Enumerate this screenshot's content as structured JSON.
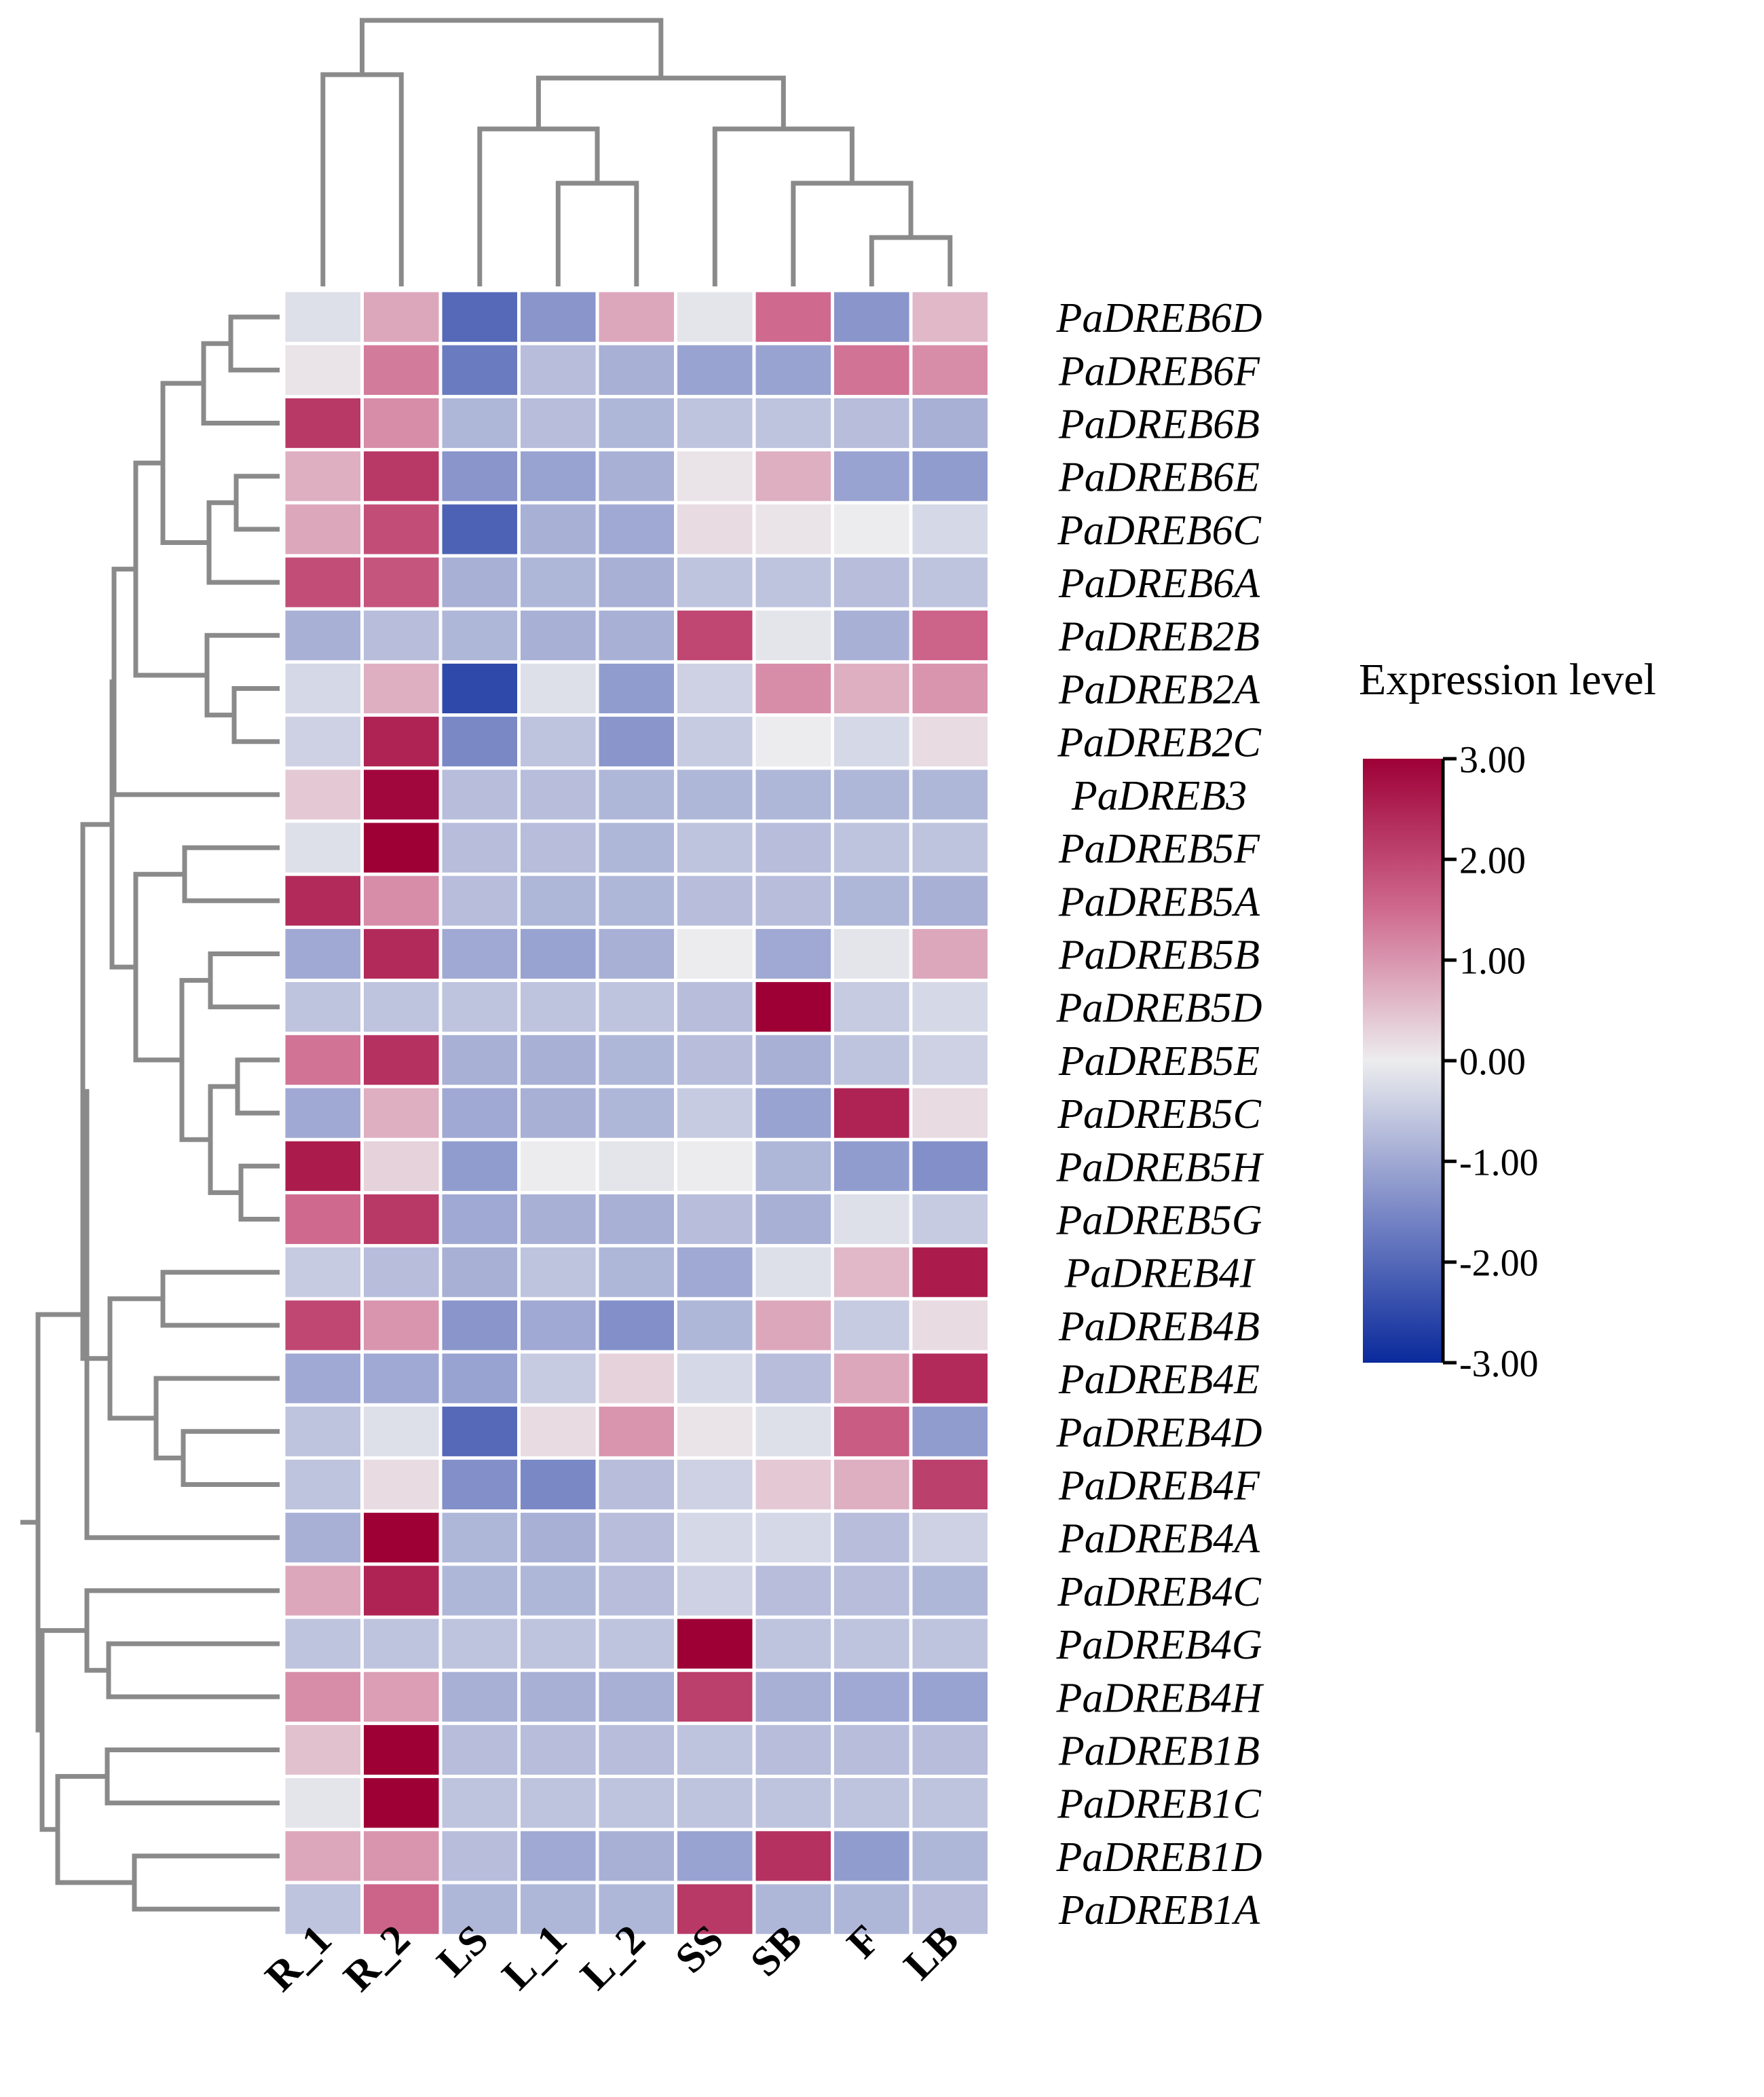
{
  "chart_data": {
    "type": "heatmap",
    "title": "",
    "columns": [
      "R_1",
      "R_2",
      "LS",
      "L_1",
      "L_2",
      "SS",
      "SB",
      "F",
      "LB"
    ],
    "rows": [
      "PaDREB6D",
      "PaDREB6F",
      "PaDREB6B",
      "PaDREB6E",
      "PaDREB6C",
      "PaDREB6A",
      "PaDREB2B",
      "PaDREB2A",
      "PaDREB2C",
      "PaDREB3",
      "PaDREB5F",
      "PaDREB5A",
      "PaDREB5B",
      "PaDREB5D",
      "PaDREB5E",
      "PaDREB5C",
      "PaDREB5H",
      "PaDREB5G",
      "PaDREB4I",
      "PaDREB4B",
      "PaDREB4E",
      "PaDREB4D",
      "PaDREB4F",
      "PaDREB4A",
      "PaDREB4C",
      "PaDREB4G",
      "PaDREB4H",
      "PaDREB1B",
      "PaDREB1C",
      "PaDREB1D",
      "PaDREB1A"
    ],
    "values": [
      [
        -0.2,
        0.8,
        -2.0,
        -1.3,
        0.8,
        -0.1,
        1.5,
        -1.3,
        0.6
      ],
      [
        0.1,
        1.3,
        -1.7,
        -0.7,
        -0.9,
        -1.1,
        -1.1,
        1.4,
        1.1
      ],
      [
        2.2,
        1.1,
        -0.8,
        -0.7,
        -0.8,
        -0.6,
        -0.6,
        -0.7,
        -0.9
      ],
      [
        0.7,
        2.2,
        -1.3,
        -1.1,
        -0.9,
        0.1,
        0.7,
        -1.1,
        -1.2
      ],
      [
        0.8,
        1.9,
        -2.1,
        -0.9,
        -1.0,
        0.2,
        0.1,
        0.0,
        -0.3
      ],
      [
        1.9,
        1.8,
        -0.9,
        -0.8,
        -0.9,
        -0.6,
        -0.6,
        -0.7,
        -0.6
      ],
      [
        -0.9,
        -0.7,
        -0.8,
        -0.9,
        -0.9,
        2.0,
        -0.1,
        -0.9,
        1.6
      ],
      [
        -0.3,
        0.7,
        -2.5,
        -0.2,
        -1.2,
        -0.4,
        1.1,
        0.7,
        1.0
      ],
      [
        -0.4,
        2.5,
        -1.5,
        -0.6,
        -1.3,
        -0.5,
        0.0,
        -0.3,
        0.2
      ],
      [
        0.4,
        2.9,
        -0.7,
        -0.7,
        -0.8,
        -0.8,
        -0.8,
        -0.8,
        -0.8
      ],
      [
        -0.2,
        3.0,
        -0.7,
        -0.7,
        -0.8,
        -0.6,
        -0.7,
        -0.6,
        -0.6
      ],
      [
        2.4,
        1.1,
        -0.7,
        -0.8,
        -0.8,
        -0.7,
        -0.7,
        -0.8,
        -0.9
      ],
      [
        -1.0,
        2.4,
        -1.0,
        -1.1,
        -0.9,
        0.0,
        -1.0,
        -0.1,
        0.8
      ],
      [
        -0.6,
        -0.6,
        -0.6,
        -0.6,
        -0.6,
        -0.7,
        3.0,
        -0.5,
        -0.3
      ],
      [
        1.4,
        2.3,
        -0.9,
        -0.9,
        -0.8,
        -0.7,
        -0.9,
        -0.6,
        -0.4
      ],
      [
        -1.0,
        0.7,
        -1.0,
        -0.9,
        -0.8,
        -0.5,
        -1.1,
        2.5,
        0.2
      ],
      [
        2.6,
        0.3,
        -1.2,
        0.0,
        -0.1,
        0.0,
        -0.8,
        -1.2,
        -1.4
      ],
      [
        1.5,
        2.2,
        -1.0,
        -0.9,
        -0.9,
        -0.7,
        -0.9,
        -0.2,
        -0.5
      ],
      [
        -0.5,
        -0.7,
        -0.9,
        -0.6,
        -0.8,
        -1.0,
        -0.2,
        0.6,
        2.6
      ],
      [
        2.0,
        1.0,
        -1.3,
        -1.0,
        -1.4,
        -0.8,
        0.8,
        -0.5,
        0.2
      ],
      [
        -1.0,
        -1.0,
        -1.1,
        -0.5,
        0.3,
        -0.3,
        -0.7,
        0.8,
        2.4
      ],
      [
        -0.6,
        -0.2,
        -2.0,
        0.2,
        1.0,
        0.1,
        -0.2,
        1.7,
        -1.2
      ],
      [
        -0.6,
        0.2,
        -1.4,
        -1.5,
        -0.7,
        -0.4,
        0.4,
        0.7,
        2.1
      ],
      [
        -0.9,
        3.0,
        -0.8,
        -0.9,
        -0.7,
        -0.3,
        -0.3,
        -0.7,
        -0.4
      ],
      [
        0.8,
        2.5,
        -0.8,
        -0.8,
        -0.7,
        -0.4,
        -0.7,
        -0.7,
        -0.8
      ],
      [
        -0.6,
        -0.6,
        -0.6,
        -0.6,
        -0.6,
        3.0,
        -0.6,
        -0.6,
        -0.6
      ],
      [
        1.1,
        0.9,
        -0.9,
        -0.9,
        -0.9,
        2.1,
        -0.9,
        -1.0,
        -1.1
      ],
      [
        0.5,
        3.0,
        -0.7,
        -0.7,
        -0.7,
        -0.6,
        -0.7,
        -0.7,
        -0.7
      ],
      [
        -0.1,
        3.0,
        -0.6,
        -0.6,
        -0.6,
        -0.6,
        -0.6,
        -0.6,
        -0.6
      ],
      [
        0.8,
        1.0,
        -0.7,
        -1.0,
        -0.9,
        -1.1,
        2.3,
        -1.2,
        -0.8
      ],
      [
        -0.6,
        1.6,
        -0.8,
        -0.8,
        -0.8,
        2.2,
        -0.8,
        -0.8,
        -0.7
      ]
    ],
    "legend_title": "Expression level",
    "color_scale": {
      "min": -3.0,
      "mid": 0.0,
      "max": 3.0,
      "low_color": "#0a2a9c",
      "mid_color": "#ececee",
      "high_color": "#9e0036"
    },
    "legend_ticks": [
      "3.00",
      "2.00",
      "1.00",
      "0.00",
      "-1.00",
      "-2.00",
      "-3.00"
    ],
    "legend_placement": "right"
  }
}
